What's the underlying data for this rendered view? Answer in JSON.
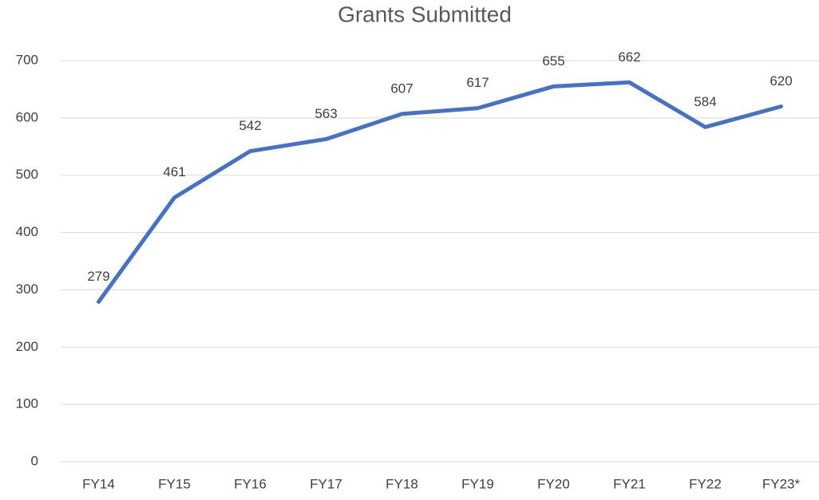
{
  "chart_data": {
    "type": "line",
    "title": "Grants Submitted",
    "categories": [
      "FY14",
      "FY15",
      "FY16",
      "FY17",
      "FY18",
      "FY19",
      "FY20",
      "FY21",
      "FY22",
      "FY23*"
    ],
    "series": [
      {
        "name": "Grants Submitted",
        "color": "#4472c4",
        "values": [
          279,
          461,
          542,
          563,
          607,
          617,
          655,
          662,
          584,
          620
        ]
      }
    ],
    "ylim": [
      0,
      700
    ],
    "yticks": [
      0,
      100,
      200,
      300,
      400,
      500,
      600,
      700
    ],
    "grid": true
  }
}
